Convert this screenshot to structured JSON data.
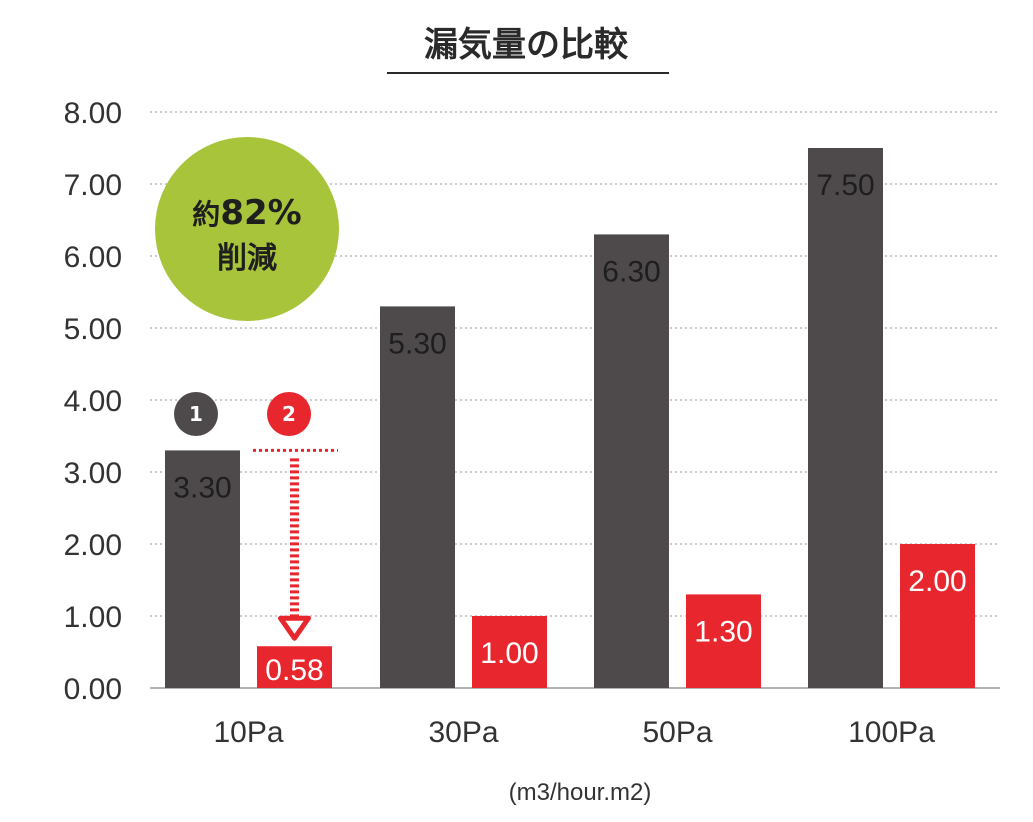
{
  "chart_data": {
    "type": "bar",
    "title": "漏気量の比較",
    "categories": [
      "10Pa",
      "30Pa",
      "50Pa",
      "100Pa"
    ],
    "series": [
      {
        "marker": "1",
        "color": "#4e4a4b",
        "values": [
          3.3,
          5.3,
          6.3,
          7.5
        ],
        "labels": [
          "3.30",
          "5.30",
          "6.30",
          "7.50"
        ]
      },
      {
        "marker": "2",
        "color": "#e8262d",
        "values": [
          0.58,
          1.0,
          1.3,
          2.0
        ],
        "labels": [
          "0.58",
          "1.00",
          "1.30",
          "2.00"
        ]
      }
    ],
    "yticks": [
      "0.00",
      "1.00",
      "2.00",
      "3.00",
      "4.00",
      "5.00",
      "6.00",
      "7.00",
      "8.00"
    ],
    "ylim": [
      0,
      8
    ],
    "unit": "(m3/hour.m2)",
    "grid": true,
    "badge": {
      "line1_prefix": "約",
      "line1_value": "82%",
      "line2": "削減",
      "color": "#a8c43a"
    },
    "annotation_arrow": {
      "from_series": "1",
      "to_series": "2",
      "category": "10Pa",
      "color": "#e8262d"
    }
  }
}
